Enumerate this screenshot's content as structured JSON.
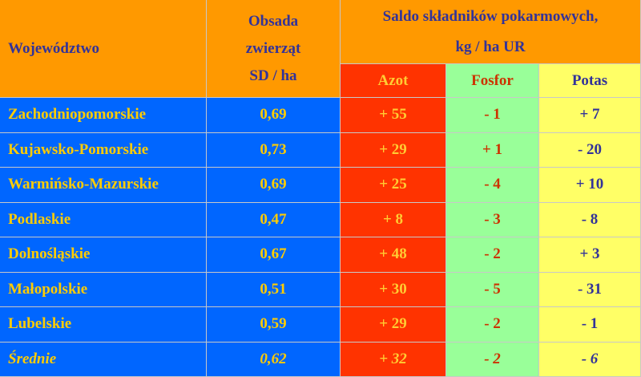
{
  "header": {
    "region": "Województwo",
    "density": [
      "Obsada",
      "zwierząt",
      "SD / ha"
    ],
    "balance": [
      "Saldo składników pokarmowych,",
      "kg / ha UR"
    ],
    "nutrients": [
      "Azot",
      "Fosfor",
      "Potas"
    ]
  },
  "table": {
    "rows": [
      [
        "Zachodniopomorskie",
        "0,69",
        "+ 55",
        "- 1",
        "+ 7"
      ],
      [
        "Kujawsko-Pomorskie",
        "0,73",
        "+ 29",
        "+ 1",
        "- 20"
      ],
      [
        "Warmińsko-Mazurskie",
        "0,69",
        "+ 25",
        "- 4",
        "+ 10"
      ],
      [
        "Podlaskie",
        "0,47",
        "+ 8",
        "- 3",
        "- 8"
      ],
      [
        "Dolnośląskie",
        "0,67",
        "+ 48",
        "- 2",
        "+ 3"
      ],
      [
        "Małopolskie",
        "0,51",
        "+ 30",
        "- 5",
        "- 31"
      ],
      [
        "Lubelskie",
        "0,59",
        "+ 29",
        "- 2",
        "- 1"
      ],
      [
        "Średnie",
        "0,62",
        "+ 32",
        "- 2",
        "- 6"
      ]
    ]
  }
}
